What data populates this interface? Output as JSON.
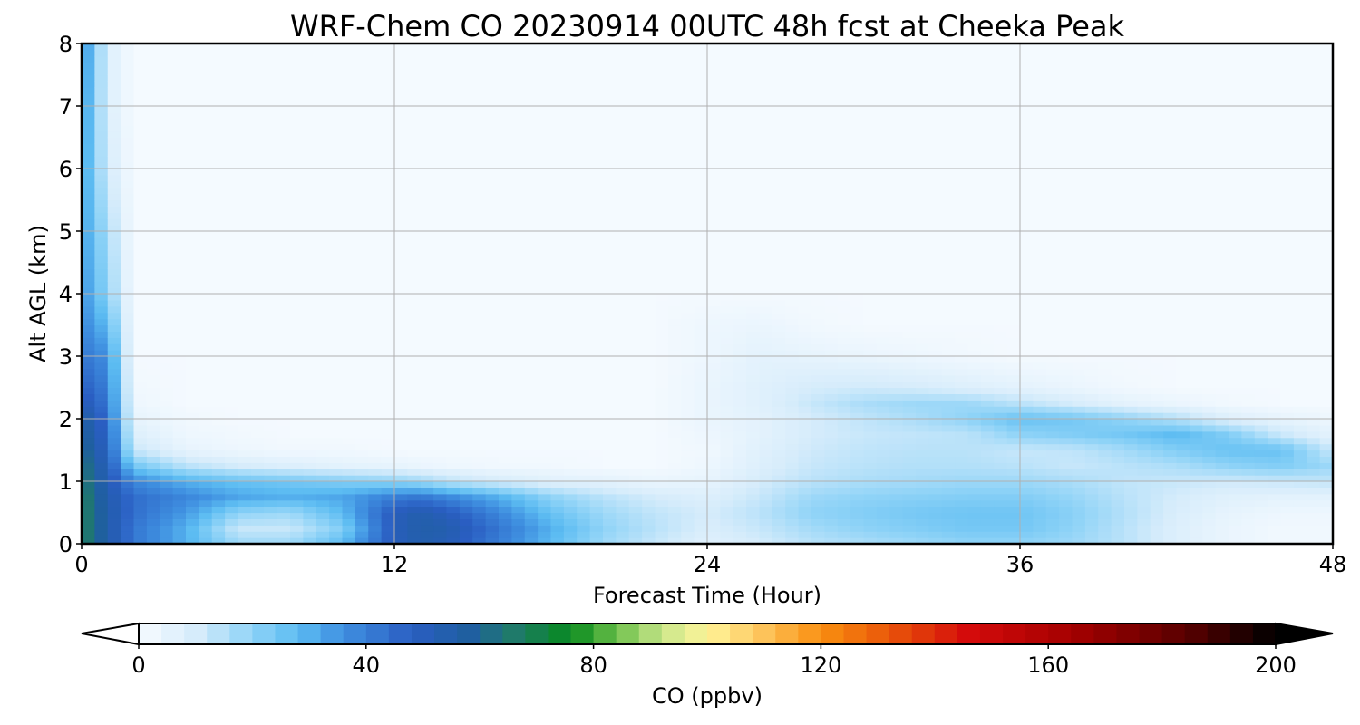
{
  "chart_data": {
    "type": "heatmap",
    "title": "WRF-Chem CO  20230914 00UTC 48h fcst at Cheeka Peak",
    "xlabel": "Forecast Time (Hour)",
    "ylabel": "Alt AGL (km)",
    "xlim": [
      0,
      48
    ],
    "ylim": [
      0,
      8
    ],
    "x_ticks": [
      0,
      12,
      24,
      36,
      48
    ],
    "y_ticks": [
      0,
      1,
      2,
      3,
      4,
      5,
      6,
      7,
      8
    ],
    "grid": true,
    "x_hours": [
      0,
      1,
      2,
      4,
      6,
      8,
      10,
      12,
      13,
      14,
      16,
      18,
      20,
      22,
      24,
      26,
      28,
      30,
      32,
      34,
      36,
      38,
      40,
      42,
      44,
      46,
      48
    ],
    "y_km": [
      0,
      0.25,
      0.5,
      0.75,
      1,
      1.25,
      1.5,
      1.75,
      2,
      2.25,
      2.5,
      3,
      3.5,
      4,
      5,
      6,
      7,
      8
    ],
    "z_ppbv": [
      [
        68,
        55,
        42,
        30,
        18,
        18,
        28,
        50,
        54,
        52,
        40,
        28,
        18,
        12,
        7,
        10,
        14,
        16,
        18,
        20,
        20,
        18,
        14,
        8,
        4,
        2,
        2
      ],
      [
        68,
        55,
        42,
        30,
        12,
        12,
        22,
        50,
        55,
        54,
        42,
        30,
        20,
        14,
        9,
        12,
        17,
        20,
        22,
        24,
        24,
        20,
        14,
        8,
        4,
        2,
        2
      ],
      [
        68,
        55,
        44,
        34,
        20,
        18,
        28,
        50,
        54,
        50,
        38,
        26,
        18,
        13,
        10,
        14,
        20,
        22,
        24,
        25,
        25,
        21,
        15,
        9,
        5,
        3,
        3
      ],
      [
        68,
        54,
        44,
        38,
        32,
        30,
        32,
        40,
        42,
        38,
        30,
        20,
        14,
        10,
        8,
        12,
        18,
        20,
        21,
        22,
        22,
        19,
        14,
        10,
        7,
        6,
        6
      ],
      [
        66,
        52,
        38,
        30,
        26,
        24,
        22,
        20,
        18,
        14,
        10,
        7,
        6,
        4,
        5,
        10,
        14,
        16,
        17,
        18,
        18,
        16,
        13,
        12,
        11,
        12,
        13
      ],
      [
        65,
        50,
        24,
        14,
        10,
        8,
        6,
        5,
        4,
        3,
        2,
        2,
        1,
        1,
        3,
        8,
        12,
        14,
        15,
        15,
        14,
        12,
        14,
        16,
        20,
        22,
        18
      ],
      [
        62,
        48,
        12,
        5,
        3,
        2,
        2,
        1,
        1,
        1,
        1,
        1,
        1,
        1,
        2,
        7,
        11,
        13,
        14,
        14,
        12,
        13,
        17,
        22,
        26,
        26,
        12
      ],
      [
        60,
        46,
        8,
        3,
        2,
        1,
        1,
        1,
        1,
        1,
        1,
        1,
        1,
        1,
        3,
        6,
        10,
        12,
        13,
        14,
        20,
        22,
        24,
        28,
        22,
        12,
        6
      ],
      [
        58,
        44,
        5,
        2,
        1,
        1,
        1,
        1,
        1,
        1,
        1,
        1,
        1,
        1,
        4,
        6,
        10,
        13,
        16,
        20,
        26,
        24,
        20,
        15,
        8,
        5,
        3
      ],
      [
        52,
        42,
        3,
        1,
        1,
        1,
        1,
        1,
        1,
        1,
        1,
        1,
        1,
        1,
        4,
        7,
        12,
        16,
        18,
        18,
        14,
        10,
        6,
        4,
        2,
        1,
        1
      ],
      [
        48,
        40,
        2,
        1,
        1,
        1,
        1,
        1,
        1,
        1,
        1,
        1,
        1,
        1,
        4,
        7,
        10,
        11,
        10,
        8,
        6,
        4,
        2,
        1,
        1,
        1,
        1
      ],
      [
        42,
        36,
        1,
        1,
        1,
        1,
        1,
        1,
        1,
        1,
        1,
        1,
        1,
        1,
        3,
        6,
        5,
        4,
        3,
        2,
        1,
        1,
        1,
        1,
        1,
        1,
        1
      ],
      [
        38,
        28,
        1,
        1,
        1,
        1,
        1,
        1,
        1,
        1,
        1,
        1,
        1,
        1,
        3,
        4,
        2,
        1,
        1,
        1,
        1,
        1,
        1,
        1,
        1,
        1,
        1
      ],
      [
        36,
        20,
        1,
        1,
        1,
        1,
        1,
        1,
        1,
        1,
        1,
        1,
        1,
        1,
        1,
        1,
        1,
        1,
        1,
        1,
        1,
        1,
        1,
        1,
        1,
        1,
        1
      ],
      [
        34,
        16,
        1,
        1,
        1,
        1,
        1,
        1,
        1,
        1,
        1,
        1,
        1,
        1,
        1,
        1,
        1,
        1,
        1,
        1,
        1,
        1,
        1,
        1,
        1,
        1,
        1
      ],
      [
        34,
        10,
        1,
        1,
        1,
        1,
        1,
        1,
        1,
        1,
        1,
        1,
        1,
        1,
        1,
        1,
        1,
        1,
        1,
        1,
        1,
        1,
        1,
        1,
        1,
        1,
        1
      ],
      [
        36,
        8,
        1,
        1,
        1,
        1,
        1,
        1,
        1,
        1,
        1,
        1,
        1,
        1,
        1,
        1,
        1,
        1,
        1,
        1,
        1,
        1,
        1,
        1,
        1,
        1,
        1
      ],
      [
        38,
        8,
        1,
        1,
        1,
        1,
        1,
        1,
        1,
        1,
        1,
        1,
        1,
        1,
        1,
        1,
        1,
        1,
        1,
        1,
        1,
        1,
        1,
        1,
        1,
        1,
        1
      ]
    ],
    "colorbar": {
      "label": "CO  (ppbv)",
      "min": 0,
      "max": 200,
      "ticks": [
        0,
        40,
        80,
        120,
        160,
        200
      ],
      "extend": "both",
      "colormap": [
        [
          0,
          "#f7fbff"
        ],
        [
          10,
          "#d6ecfb"
        ],
        [
          20,
          "#8fd3f7"
        ],
        [
          28,
          "#5cbcf2"
        ],
        [
          36,
          "#3f8fe0"
        ],
        [
          48,
          "#2a5ec2"
        ],
        [
          58,
          "#1f5fa0"
        ],
        [
          66,
          "#1f7a6a"
        ],
        [
          76,
          "#078a1e"
        ],
        [
          84,
          "#6cbf4a"
        ],
        [
          92,
          "#c8e68a"
        ],
        [
          100,
          "#fff59a"
        ],
        [
          110,
          "#fdc35a"
        ],
        [
          120,
          "#f98f10"
        ],
        [
          132,
          "#e9560a"
        ],
        [
          146,
          "#d40b0b"
        ],
        [
          165,
          "#a20000"
        ],
        [
          185,
          "#560000"
        ],
        [
          200,
          "#000000"
        ]
      ]
    }
  }
}
